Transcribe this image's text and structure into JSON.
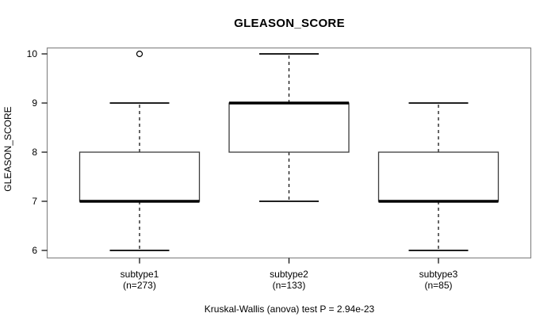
{
  "chart_data": {
    "type": "boxplot",
    "title": "GLEASON_SCORE",
    "ylabel": "GLEASON_SCORE",
    "yticks": [
      6,
      7,
      8,
      9,
      10
    ],
    "ylim": [
      5.8,
      10.2
    ],
    "grid": false,
    "caption": "Kruskal-Wallis (anova) test P = 2.94e-23",
    "groups": [
      {
        "label": "subtype1",
        "sublabel": "(n=273)",
        "n": 273,
        "whisker_low": 6,
        "q1": 7,
        "median": 7,
        "q3": 8,
        "whisker_high": 9,
        "outliers": [
          10
        ]
      },
      {
        "label": "subtype2",
        "sublabel": "(n=133)",
        "n": 133,
        "whisker_low": 7,
        "q1": 8,
        "median": 9,
        "q3": 9,
        "whisker_high": 10,
        "outliers": []
      },
      {
        "label": "subtype3",
        "sublabel": "(n=85)",
        "n": 85,
        "whisker_low": 6,
        "q1": 7,
        "median": 7,
        "q3": 8,
        "whisker_high": 9,
        "outliers": []
      }
    ]
  },
  "colors": {
    "line": "#000000",
    "box_border": "#3c3c3c",
    "frame": "#888888",
    "background": "#ffffff"
  }
}
